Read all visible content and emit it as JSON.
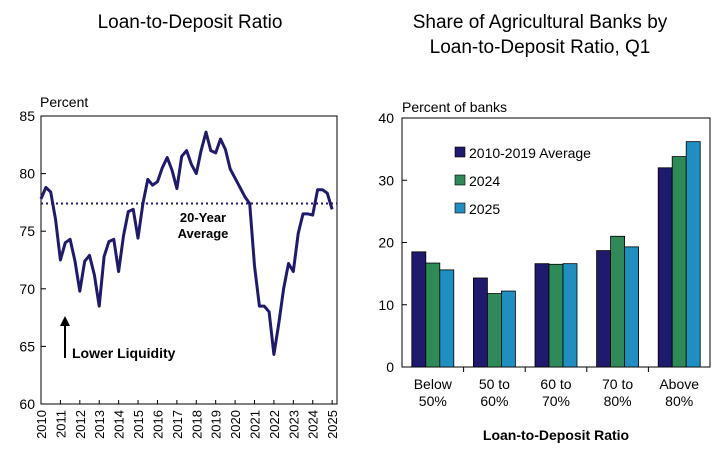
{
  "chart_data": [
    {
      "type": "line",
      "title": "Loan-to-Deposit Ratio",
      "ylabel": "Percent",
      "ylim": [
        60,
        85
      ],
      "yticks": [
        60,
        65,
        70,
        75,
        80,
        85
      ],
      "xlim": [
        2010,
        2025.25
      ],
      "xticks": [
        "2010",
        "2011",
        "2012",
        "2013",
        "2014",
        "2015",
        "2016",
        "2017",
        "2018",
        "2019",
        "2020",
        "2021",
        "2022",
        "2023",
        "2024",
        "2025"
      ],
      "average": {
        "value": 77.4,
        "label_line1": "20-Year",
        "label_line2": "Average"
      },
      "annotation": "Lower Liquidity",
      "series": [
        {
          "color": "#1f1a6e",
          "x": [
            2010,
            2010.25,
            2010.5,
            2010.75,
            2011,
            2011.25,
            2011.5,
            2011.75,
            2012,
            2012.25,
            2012.5,
            2012.75,
            2013,
            2013.25,
            2013.5,
            2013.75,
            2014,
            2014.25,
            2014.5,
            2014.75,
            2015,
            2015.25,
            2015.5,
            2015.75,
            2016,
            2016.25,
            2016.5,
            2016.75,
            2017,
            2017.25,
            2017.5,
            2017.75,
            2018,
            2018.25,
            2018.5,
            2018.75,
            2019,
            2019.25,
            2019.5,
            2019.75,
            2020,
            2020.25,
            2020.5,
            2020.75,
            2021,
            2021.25,
            2021.5,
            2021.75,
            2022,
            2022.25,
            2022.5,
            2022.75,
            2023,
            2023.25,
            2023.5,
            2023.75,
            2024,
            2024.25,
            2024.5,
            2024.75,
            2025
          ],
          "y": [
            77.8,
            78.8,
            78.4,
            76.0,
            72.5,
            74.0,
            74.3,
            72.4,
            69.8,
            72.4,
            72.9,
            71.2,
            68.5,
            72.8,
            74.1,
            74.3,
            71.5,
            74.6,
            76.7,
            76.9,
            74.4,
            77.4,
            79.5,
            79.0,
            79.3,
            80.5,
            81.4,
            80.3,
            78.7,
            81.5,
            82.0,
            80.8,
            80.0,
            82.0,
            83.6,
            82.0,
            81.8,
            83.0,
            82.1,
            80.4,
            79.6,
            78.8,
            78.0,
            77.4,
            72.0,
            68.5,
            68.5,
            68.0,
            64.3,
            67.0,
            70.0,
            72.2,
            71.5,
            74.8,
            76.5,
            76.5,
            76.4,
            78.6,
            78.6,
            78.3,
            76.9
          ]
        }
      ]
    },
    {
      "type": "bar",
      "title": "Share of Agricultural Banks by Loan-to-Deposit Ratio, Q1",
      "title_line1": "Share of Agricultural Banks by",
      "title_line2": "Loan-to-Deposit Ratio, Q1",
      "ylabel": "Percent of banks",
      "xlabel": "Loan-to-Deposit Ratio",
      "ylim": [
        0,
        40
      ],
      "yticks": [
        0,
        10,
        20,
        30,
        40
      ],
      "categories": [
        "Below 50%",
        "50 to 60%",
        "60 to 70%",
        "70 to 80%",
        "Above 80%"
      ],
      "category_lines": [
        [
          "Below",
          "50%"
        ],
        [
          "50 to",
          "60%"
        ],
        [
          "60 to",
          "70%"
        ],
        [
          "70 to",
          "80%"
        ],
        [
          "Above",
          "80%"
        ]
      ],
      "legend_position": "top-left",
      "series": [
        {
          "name": "2010-2019 Average",
          "color": "#1f1a6e",
          "values": [
            18.5,
            14.3,
            16.6,
            18.7,
            32.0
          ]
        },
        {
          "name": "2024",
          "color": "#2e8b57",
          "values": [
            16.7,
            11.8,
            16.5,
            21.0,
            33.8
          ]
        },
        {
          "name": "2025",
          "color": "#1f8fc2",
          "values": [
            15.6,
            12.2,
            16.6,
            19.3,
            36.2
          ]
        }
      ]
    }
  ]
}
